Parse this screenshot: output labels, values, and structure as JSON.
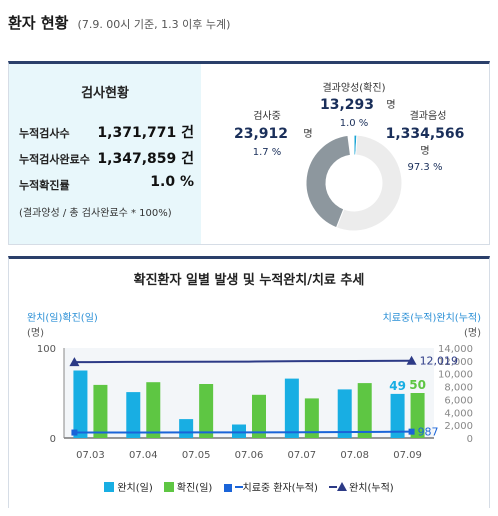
{
  "header": {
    "title": "환자 현황",
    "subtitle": "(7.9. 00시 기준, 1.3 이후 누계)"
  },
  "summary": {
    "title": "검사현황",
    "rows": [
      {
        "label": "누적검사수",
        "value": "1,371,771 건"
      },
      {
        "label": "누적검사완료수",
        "value": "1,347,859 건"
      },
      {
        "label": "누적확진률",
        "value": "1.0 %"
      }
    ],
    "note": "(결과양성 / 총 검사완료수 * 100%)"
  },
  "donut": {
    "segments": [
      {
        "name": "검사중",
        "value": "23,912",
        "unit": "명",
        "pct": "1.7 %",
        "color": "#8d979e",
        "frac": 0.0174
      },
      {
        "name": "결과양성(확진)",
        "value": "13,293",
        "unit": "명",
        "pct": "1.0 %",
        "color": "#1aa4d4",
        "frac": 0.0097
      },
      {
        "name": "결과음성",
        "value": "1,334,566",
        "unit": "명",
        "pct": "97.3 %",
        "color": "#ececec",
        "frac": 0.9729
      }
    ]
  },
  "chart_data": {
    "type": "bar",
    "title": "확진환자 일별 발생 및 누적완치/치료 추세",
    "categories": [
      "07.03",
      "07.04",
      "07.05",
      "07.06",
      "07.07",
      "07.08",
      "07.09"
    ],
    "left_axis": {
      "label": "완치(일)확진(일)",
      "unit": "(명)",
      "ticks": [
        "100",
        "0"
      ],
      "ylim": [
        0,
        100
      ]
    },
    "right_axis": {
      "label": "치료중(누적)완치(누적)",
      "unit": "(명)",
      "ticks": [
        "14,000",
        "12,000",
        "10,000",
        "8,000",
        "6,000",
        "4,000",
        "2,000",
        "0"
      ],
      "ylim": [
        0,
        14000
      ]
    },
    "series": [
      {
        "name": "완치(일)",
        "kind": "bar",
        "color": "#18aee3",
        "values": [
          75,
          51,
          21,
          15,
          66,
          54,
          49
        ]
      },
      {
        "name": "확진(일)",
        "kind": "bar",
        "color": "#5ec643",
        "values": [
          59,
          62,
          60,
          48,
          44,
          61,
          50
        ]
      },
      {
        "name": "치료중 환자(누적)",
        "kind": "line",
        "color": "#1a64d8",
        "values": [
          850,
          860,
          870,
          880,
          900,
          930,
          987
        ]
      },
      {
        "name": "완치(누적)",
        "kind": "line",
        "color": "#2c3a86",
        "values": [
          11800,
          11850,
          11870,
          11890,
          11950,
          11970,
          12019
        ]
      }
    ],
    "labels": {
      "last_cured": "49",
      "last_confirmed": "50",
      "last_treat": "987",
      "last_cured_cum": "12,019"
    }
  }
}
